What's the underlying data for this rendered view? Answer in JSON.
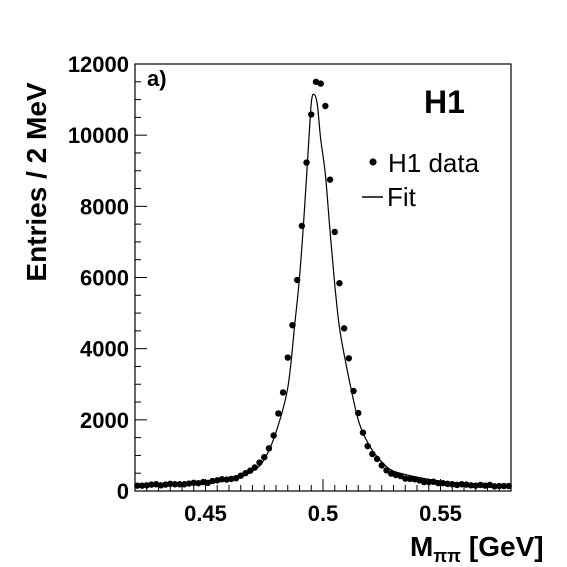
{
  "chart_data": {
    "type": "scatter",
    "xlabel_main": "M",
    "xlabel_sub": "ππ",
    "xlabel_unit": "[GeV]",
    "ylabel": "Entries / 2 MeV",
    "xlim": [
      0.42,
      0.58
    ],
    "ylim": [
      0,
      12000
    ],
    "x_ticks": [
      0.45,
      0.5,
      0.55
    ],
    "x_tick_labels": [
      "0.45",
      "0.5",
      "0.55"
    ],
    "y_ticks": [
      0,
      2000,
      4000,
      6000,
      8000,
      10000,
      12000
    ],
    "y_tick_labels": [
      "0",
      "2000",
      "4000",
      "6000",
      "8000",
      "10000",
      "12000"
    ],
    "panel_label": "a)",
    "logo": "H1",
    "legend_position": "top-right",
    "series": [
      {
        "name": "H1 data",
        "style": "markers",
        "x": [
          0.421,
          0.423,
          0.425,
          0.427,
          0.429,
          0.431,
          0.433,
          0.435,
          0.437,
          0.439,
          0.441,
          0.443,
          0.445,
          0.447,
          0.449,
          0.451,
          0.453,
          0.455,
          0.457,
          0.459,
          0.461,
          0.463,
          0.465,
          0.467,
          0.469,
          0.471,
          0.473,
          0.475,
          0.477,
          0.479,
          0.481,
          0.483,
          0.485,
          0.487,
          0.489,
          0.491,
          0.493,
          0.495,
          0.497,
          0.499,
          0.501,
          0.503,
          0.505,
          0.507,
          0.509,
          0.511,
          0.513,
          0.515,
          0.517,
          0.519,
          0.521,
          0.523,
          0.525,
          0.527,
          0.529,
          0.531,
          0.533,
          0.535,
          0.537,
          0.539,
          0.541,
          0.543,
          0.545,
          0.547,
          0.549,
          0.551,
          0.553,
          0.555,
          0.557,
          0.559,
          0.561,
          0.563,
          0.565,
          0.567,
          0.569,
          0.571,
          0.573,
          0.575,
          0.577,
          0.579
        ],
        "y": [
          150,
          150,
          160,
          180,
          190,
          160,
          180,
          200,
          190,
          190,
          190,
          210,
          230,
          220,
          250,
          230,
          280,
          300,
          330,
          320,
          340,
          360,
          430,
          500,
          570,
          660,
          800,
          950,
          1200,
          1560,
          2180,
          2770,
          3750,
          4660,
          5930,
          7450,
          9230,
          10580,
          11500,
          11450,
          10820,
          8750,
          7280,
          5840,
          4570,
          3730,
          2810,
          2190,
          1640,
          1260,
          1040,
          900,
          720,
          580,
          490,
          450,
          420,
          350,
          340,
          330,
          300,
          250,
          250,
          260,
          220,
          220,
          200,
          190,
          170,
          190,
          180,
          160,
          150,
          170,
          150,
          170,
          130,
          140,
          140,
          140
        ]
      },
      {
        "name": "Fit",
        "style": "line",
        "x": [
          0.42,
          0.44,
          0.46,
          0.47,
          0.475,
          0.48,
          0.485,
          0.488,
          0.49,
          0.492,
          0.494,
          0.495,
          0.496,
          0.4975,
          0.499,
          0.501,
          0.503,
          0.505,
          0.507,
          0.51,
          0.515,
          0.52,
          0.525,
          0.53,
          0.54,
          0.55,
          0.56,
          0.58
        ],
        "y": [
          150,
          200,
          320,
          560,
          890,
          1650,
          2900,
          4700,
          6000,
          7800,
          9900,
          10900,
          11150,
          10900,
          9900,
          8900,
          7300,
          5800,
          4600,
          3500,
          2000,
          1250,
          820,
          560,
          390,
          280,
          210,
          150
        ]
      }
    ]
  }
}
